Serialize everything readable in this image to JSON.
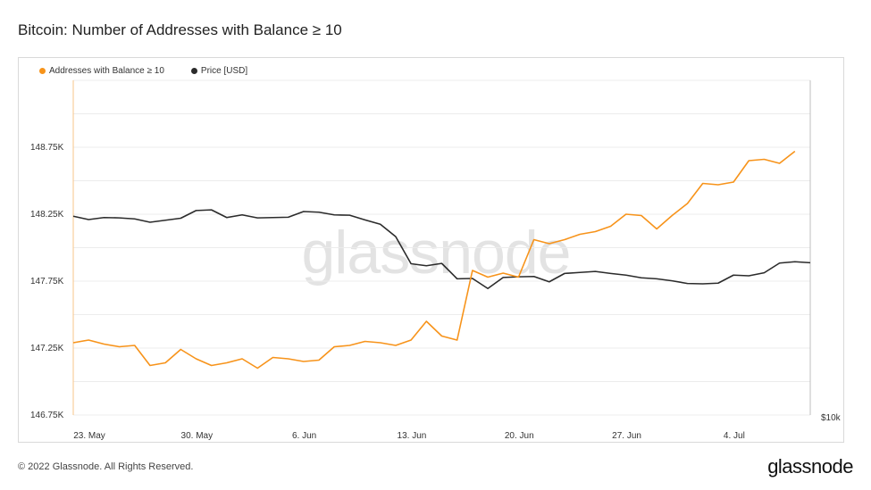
{
  "title": "Bitcoin: Number of Addresses with Balance ≥ 10",
  "footer": "© 2022 Glassnode. All Rights Reserved.",
  "brand": "glassnode",
  "watermark": "glassnode",
  "colors": {
    "addresses": "#f7931a",
    "price": "#2b2b2b"
  },
  "legend": [
    {
      "label": "Addresses with Balance ≥ 10",
      "color": "#f7931a"
    },
    {
      "label": "Price [USD]",
      "color": "#2b2b2b"
    }
  ],
  "chart_data": {
    "type": "line",
    "grid": true,
    "legend_position": "top-left",
    "xlabel": "",
    "ylabel": "",
    "x_tick_labels": [
      "23. May",
      "30. May",
      "6. Jun",
      "13. Jun",
      "20. Jun",
      "27. Jun",
      "4. Jul"
    ],
    "y_ticks": [
      "146.75K",
      "147.25K",
      "147.75K",
      "148.25K",
      "148.75K"
    ],
    "y_ticks_values": [
      146750,
      147250,
      147750,
      148250,
      148750
    ],
    "y2_ticks": [
      "$10k"
    ],
    "ylim": [
      146750,
      149250
    ],
    "x_days": [
      0,
      48
    ],
    "series": [
      {
        "name": "Addresses with Balance ≥ 10",
        "axis": "left",
        "x": [
          0,
          1,
          2,
          3,
          4,
          5,
          6,
          7,
          8,
          9,
          10,
          11,
          12,
          13,
          14,
          15,
          16,
          17,
          18,
          19,
          20,
          21,
          22,
          23,
          24,
          25,
          26,
          27,
          28,
          29,
          30,
          31,
          32,
          33,
          34,
          35,
          36,
          37,
          38,
          39,
          40,
          41,
          42,
          43,
          44,
          45,
          46,
          47
        ],
        "values": [
          147290,
          147310,
          147280,
          147260,
          147270,
          147120,
          147140,
          147240,
          147170,
          147120,
          147140,
          147170,
          147100,
          147180,
          147170,
          147150,
          147160,
          147260,
          147270,
          147300,
          147290,
          147270,
          147310,
          147450,
          147340,
          147310,
          147830,
          147780,
          147810,
          147780,
          148060,
          148030,
          148060,
          148100,
          148120,
          148160,
          148250,
          148240,
          148140,
          148240,
          148330,
          148480,
          148470,
          148490,
          148650,
          148660,
          148630,
          148720
        ]
      },
      {
        "name": "Price [USD]",
        "axis": "right",
        "x": [
          0,
          1,
          2,
          3,
          4,
          5,
          6,
          7,
          8,
          9,
          10,
          11,
          12,
          13,
          14,
          15,
          16,
          17,
          18,
          19,
          20,
          21,
          22,
          23,
          24,
          25,
          26,
          27,
          28,
          29,
          30,
          31,
          32,
          33,
          34,
          35,
          36,
          37,
          38,
          39,
          40,
          41,
          42,
          43,
          44,
          45,
          46,
          47,
          48
        ],
        "values": [
          29700,
          29200,
          29500,
          29450,
          29300,
          28800,
          29100,
          29400,
          30550,
          30650,
          29500,
          29900,
          29450,
          29500,
          29550,
          30400,
          30300,
          29900,
          29850,
          29150,
          28500,
          26650,
          22600,
          22300,
          22650,
          20350,
          20400,
          18900,
          20550,
          20650,
          20700,
          19900,
          21150,
          21300,
          21450,
          21150,
          20900,
          20500,
          20350,
          20050,
          19650,
          19600,
          19700,
          20900,
          20800,
          21250,
          22700,
          22900,
          22750
        ]
      }
    ],
    "y2lim": [
      0,
      50000
    ]
  }
}
